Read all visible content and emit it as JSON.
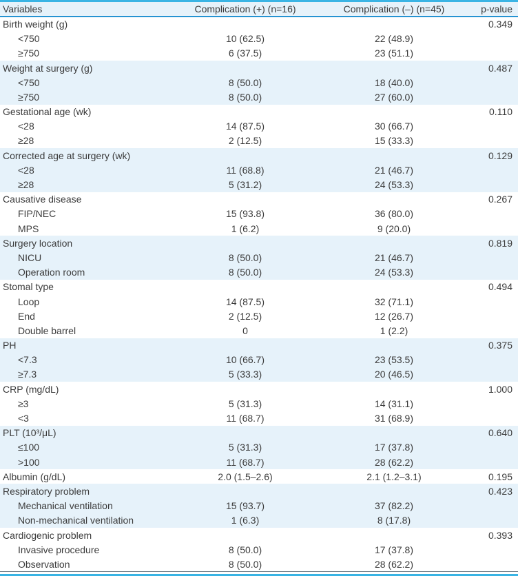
{
  "colors": {
    "accent_cyan": "#3ab4e4",
    "accent_blue": "#2593d2",
    "row_shade": "#e6f2fa",
    "header_bg": "#e6f2fa",
    "text_color": "#3b3b3b",
    "bottom_rule": "#76828c"
  },
  "table": {
    "header": {
      "variables": "Variables",
      "comp_pos": "Complication (+) (n=16)",
      "comp_neg": "Complication (–) (n=45)",
      "p_value": "p-value"
    },
    "groups": [
      {
        "label": "Birth weight (g)",
        "p": "0.349",
        "shaded": false,
        "rows": [
          {
            "label": "<750",
            "c1": "10 (62.5)",
            "c2": "22 (48.9)"
          },
          {
            "label": "≥750",
            "c1": "6 (37.5)",
            "c2": "23 (51.1)"
          }
        ]
      },
      {
        "label": "Weight at surgery (g)",
        "p": "0.487",
        "shaded": true,
        "rows": [
          {
            "label": "<750",
            "c1": "8 (50.0)",
            "c2": "18 (40.0)"
          },
          {
            "label": "≥750",
            "c1": "8 (50.0)",
            "c2": "27 (60.0)"
          }
        ]
      },
      {
        "label": "Gestational age (wk)",
        "p": "0.110",
        "shaded": false,
        "rows": [
          {
            "label": "<28",
            "c1": "14 (87.5)",
            "c2": "30 (66.7)"
          },
          {
            "label": "≥28",
            "c1": "2 (12.5)",
            "c2": "15 (33.3)"
          }
        ]
      },
      {
        "label": "Corrected age at surgery (wk)",
        "p": "0.129",
        "shaded": true,
        "rows": [
          {
            "label": "<28",
            "c1": "11 (68.8)",
            "c2": "21 (46.7)"
          },
          {
            "label": "≥28",
            "c1": "5 (31.2)",
            "c2": "24 (53.3)"
          }
        ]
      },
      {
        "label": "Causative disease",
        "p": "0.267",
        "shaded": false,
        "rows": [
          {
            "label": "FIP/NEC",
            "c1": "15 (93.8)",
            "c2": "36 (80.0)"
          },
          {
            "label": "MPS",
            "c1": "1 (6.2)",
            "c2": "9 (20.0)"
          }
        ]
      },
      {
        "label": "Surgery location",
        "p": "0.819",
        "shaded": true,
        "rows": [
          {
            "label": "NICU",
            "c1": "8 (50.0)",
            "c2": "21 (46.7)"
          },
          {
            "label": "Operation room",
            "c1": "8 (50.0)",
            "c2": "24 (53.3)"
          }
        ]
      },
      {
        "label": "Stomal type",
        "p": "0.494",
        "shaded": false,
        "rows": [
          {
            "label": "Loop",
            "c1": "14 (87.5)",
            "c2": "32 (71.1)"
          },
          {
            "label": "End",
            "c1": "2 (12.5)",
            "c2": "12 (26.7)"
          },
          {
            "label": "Double barrel",
            "c1": "0",
            "c2": "1 (2.2)"
          }
        ]
      },
      {
        "label": "PH",
        "p": "0.375",
        "shaded": true,
        "rows": [
          {
            "label": "<7.3",
            "c1": "10 (66.7)",
            "c2": "23 (53.5)"
          },
          {
            "label": "≥7.3",
            "c1": "5 (33.3)",
            "c2": "20 (46.5)"
          }
        ]
      },
      {
        "label": "CRP (mg/dL)",
        "p": "1.000",
        "shaded": false,
        "rows": [
          {
            "label": "≥3",
            "c1": "5 (31.3)",
            "c2": "14 (31.1)"
          },
          {
            "label": "<3",
            "c1": "11 (68.7)",
            "c2": "31 (68.9)"
          }
        ]
      },
      {
        "label": "PLT (10³/μL)",
        "p": "0.640",
        "shaded": true,
        "rows": [
          {
            "label": "≤100",
            "c1": "5 (31.3)",
            "c2": "17 (37.8)"
          },
          {
            "label": ">100",
            "c1": "11 (68.7)",
            "c2": "28 (62.2)"
          }
        ]
      },
      {
        "label": "Albumin (g/dL)",
        "p": "0.195",
        "shaded": false,
        "c1": "2.0 (1.5–2.6)",
        "c2": "2.1 (1.2–3.1)",
        "rows": []
      },
      {
        "label": "Respiratory problem",
        "p": "0.423",
        "shaded": true,
        "rows": [
          {
            "label": "Mechanical ventilation",
            "c1": "15 (93.7)",
            "c2": "37 (82.2)"
          },
          {
            "label": "Non-mechanical ventilation",
            "c1": "1 (6.3)",
            "c2": "8 (17.8)"
          }
        ]
      },
      {
        "label": "Cardiogenic problem",
        "p": "0.393",
        "shaded": false,
        "rows": [
          {
            "label": "Invasive procedure",
            "c1": "8 (50.0)",
            "c2": "17 (37.8)"
          },
          {
            "label": "Observation",
            "c1": "8 (50.0)",
            "c2": "28 (62.2)"
          }
        ]
      }
    ]
  }
}
